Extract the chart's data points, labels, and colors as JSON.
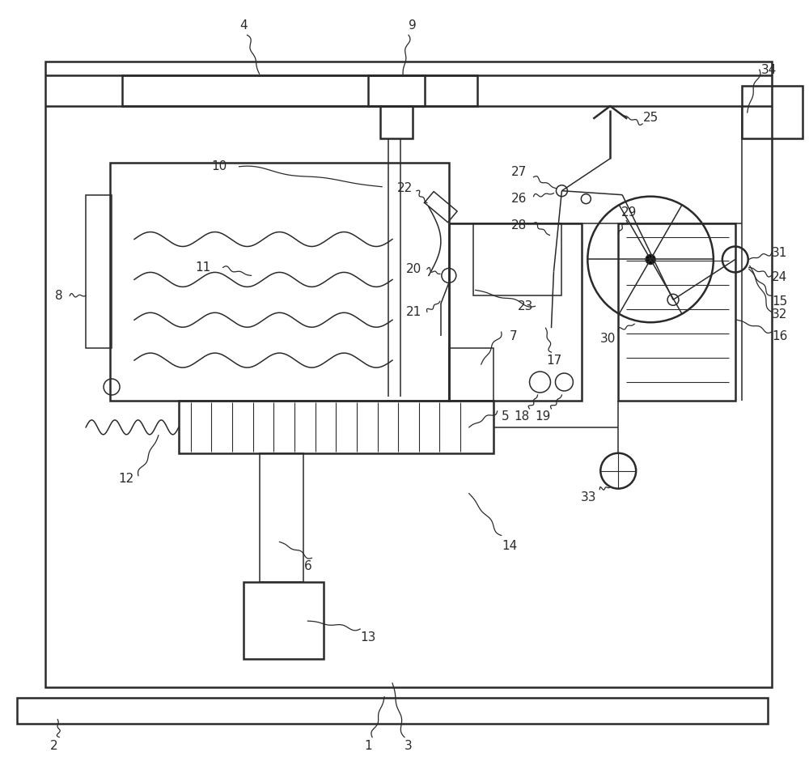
{
  "bg_color": "#ffffff",
  "line_color": "#2a2a2a",
  "lw_main": 1.8,
  "lw_thin": 1.1,
  "lw_label": 0.9,
  "fig_w": 10.0,
  "fig_h": 9.5,
  "xlim": [
    0,
    10
  ],
  "ylim": [
    0,
    9.5
  ],
  "font_size": 11
}
